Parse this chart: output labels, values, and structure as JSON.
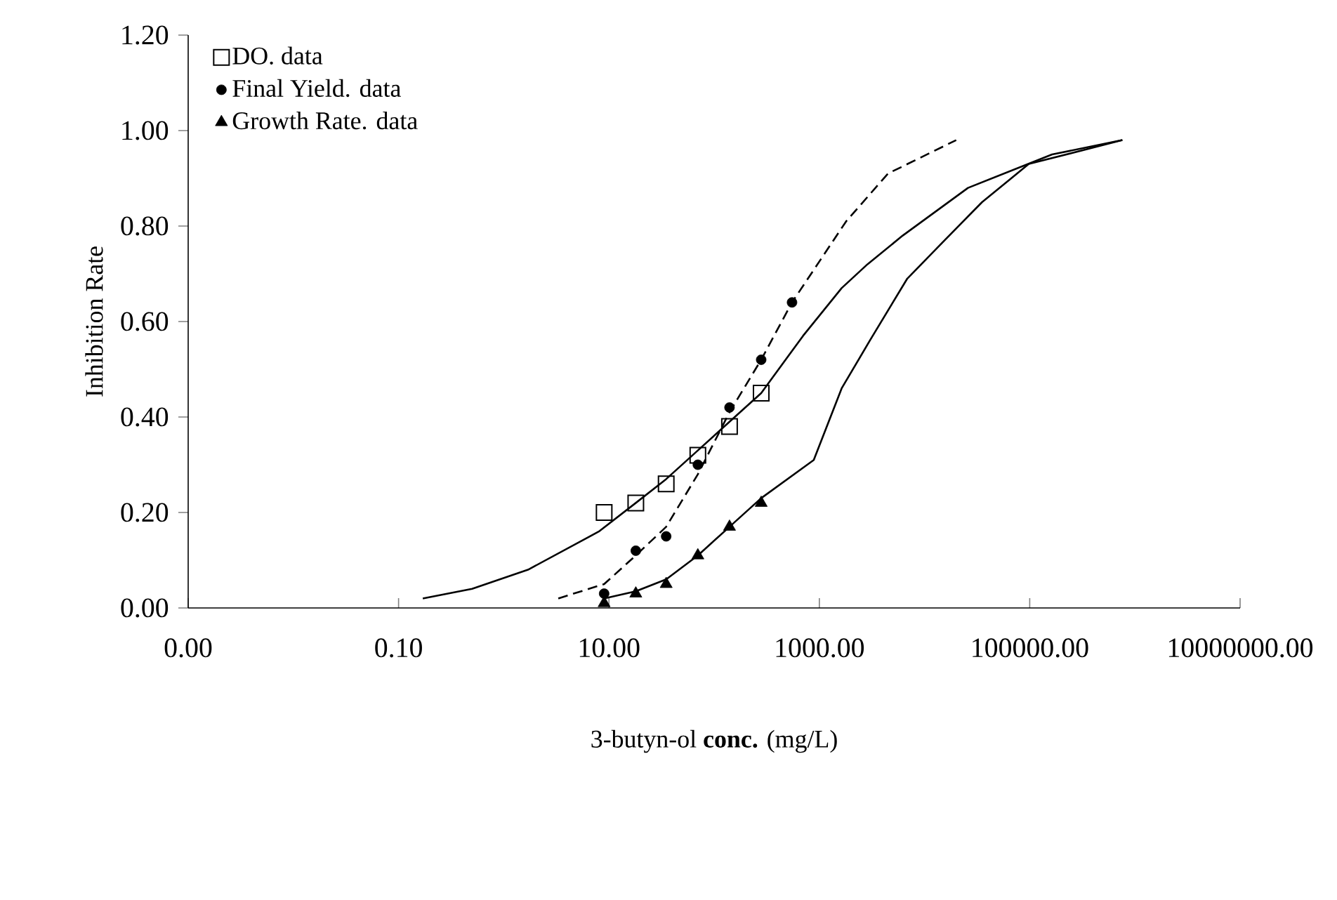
{
  "chart_data": {
    "type": "scatter",
    "xlabel": "3-butyn-ol **conc.** (mg/L)",
    "ylabel": "Inhibition Rate",
    "log": "x",
    "xlim": [
      0.001,
      10000000
    ],
    "ylim": [
      0,
      1.2
    ],
    "xticks": [
      {
        "value": 0.001,
        "label": "0.00"
      },
      {
        "value": 0.1,
        "label": "0.10"
      },
      {
        "value": 10,
        "label": "10.00"
      },
      {
        "value": 1000,
        "label": "1000.00"
      },
      {
        "value": 100000,
        "label": "100000.00"
      },
      {
        "value": 10000000,
        "label": "10000000.00"
      }
    ],
    "yticks": [
      {
        "value": 0,
        "label": "0.00"
      },
      {
        "value": 0.2,
        "label": "0.20"
      },
      {
        "value": 0.4,
        "label": "0.40"
      },
      {
        "value": 0.6,
        "label": "0.60"
      },
      {
        "value": 0.8,
        "label": "0.80"
      },
      {
        "value": 1.0,
        "label": "1.00"
      },
      {
        "value": 1.2,
        "label": "1.20"
      }
    ],
    "legend": "top left",
    "grid": false,
    "series": [
      {
        "name": "DO. data",
        "marker": "square",
        "color": "#000000",
        "x": [
          9,
          18,
          35,
          70,
          140,
          280
        ],
        "values": [
          0.2,
          0.22,
          0.26,
          0.32,
          0.38,
          0.45
        ]
      },
      {
        "name": "Final Yield. data",
        "marker": "circle",
        "color": "#000000",
        "x": [
          9,
          18,
          35,
          70,
          140,
          280,
          550
        ],
        "values": [
          0.03,
          0.12,
          0.15,
          0.3,
          0.42,
          0.52,
          0.64
        ]
      },
      {
        "name": "Growth Rate. data",
        "marker": "triangle",
        "color": "#000000",
        "x": [
          9,
          18,
          35,
          70,
          140,
          280
        ],
        "values": [
          0.01,
          0.03,
          0.05,
          0.11,
          0.17,
          0.22
        ]
      },
      {
        "type": "line",
        "line_style": "solid",
        "marker": "none",
        "color": "#000000",
        "x": [
          0.17,
          0.5,
          1.7,
          8,
          18,
          35,
          70,
          140,
          280,
          700,
          1630,
          2870,
          6200,
          25900,
          163000,
          760000
        ],
        "values": [
          0.02,
          0.04,
          0.08,
          0.16,
          0.22,
          0.27,
          0.33,
          0.39,
          0.45,
          0.57,
          0.67,
          0.72,
          0.78,
          0.88,
          0.95,
          0.98
        ]
      },
      {
        "type": "line",
        "line_style": "dashed",
        "marker": "none",
        "color": "#000000",
        "x": [
          3.3,
          9,
          18,
          35,
          70,
          140,
          280,
          550,
          1800,
          4500,
          20000
        ],
        "values": [
          0.02,
          0.05,
          0.11,
          0.17,
          0.28,
          0.41,
          0.52,
          0.64,
          0.81,
          0.91,
          0.98
        ]
      },
      {
        "type": "line",
        "line_style": "solid",
        "marker": "none",
        "color": "#000000",
        "x": [
          9,
          18,
          35,
          70,
          140,
          280,
          885,
          1630,
          3020,
          6860,
          15500,
          35200,
          98000,
          760000
        ],
        "values": [
          0.02,
          0.035,
          0.06,
          0.11,
          0.17,
          0.23,
          0.31,
          0.46,
          0.56,
          0.69,
          0.77,
          0.85,
          0.93,
          0.98
        ]
      }
    ]
  }
}
